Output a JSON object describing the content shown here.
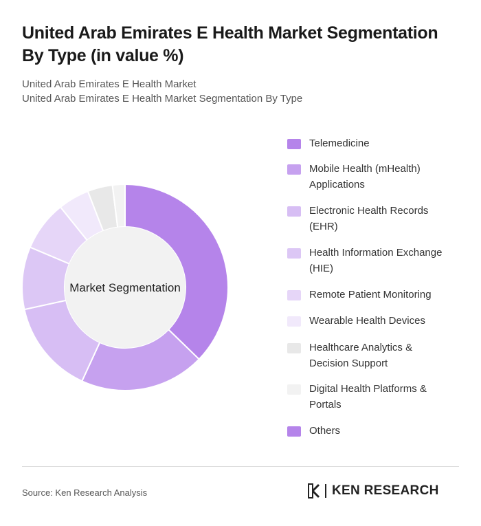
{
  "header": {
    "title": "United Arab Emirates E Health Market Segmentation By Type (in value %)",
    "subtitle_1": "United Arab Emirates E Health Market",
    "subtitle_2": "United Arab Emirates E Health Market Segmentation By Type"
  },
  "footer": {
    "source": "Source: Ken Research Analysis",
    "logo_text": "KEN RESEARCH"
  },
  "chart_data": {
    "type": "pie",
    "center_label": "Market Segmentation",
    "legend_placement": "right",
    "categories": [
      "Telemedicine",
      "Mobile Health (mHealth) Applications",
      "Electronic Health Records (EHR)",
      "Health Information Exchange (HIE)",
      "Remote Patient Monitoring",
      "Wearable Health Devices",
      "Healthcare Analytics & Decision Support",
      "Digital Health Platforms & Portals",
      "Others"
    ],
    "values": [
      38,
      20,
      15,
      10,
      8,
      5,
      4,
      2,
      0
    ],
    "colors": [
      "#b584ea",
      "#c6a1ef",
      "#d7bef4",
      "#dcc7f5",
      "#e6d6f8",
      "#f1e9fb",
      "#e8e8e8",
      "#f2f2f2",
      "#b584ea"
    ]
  }
}
